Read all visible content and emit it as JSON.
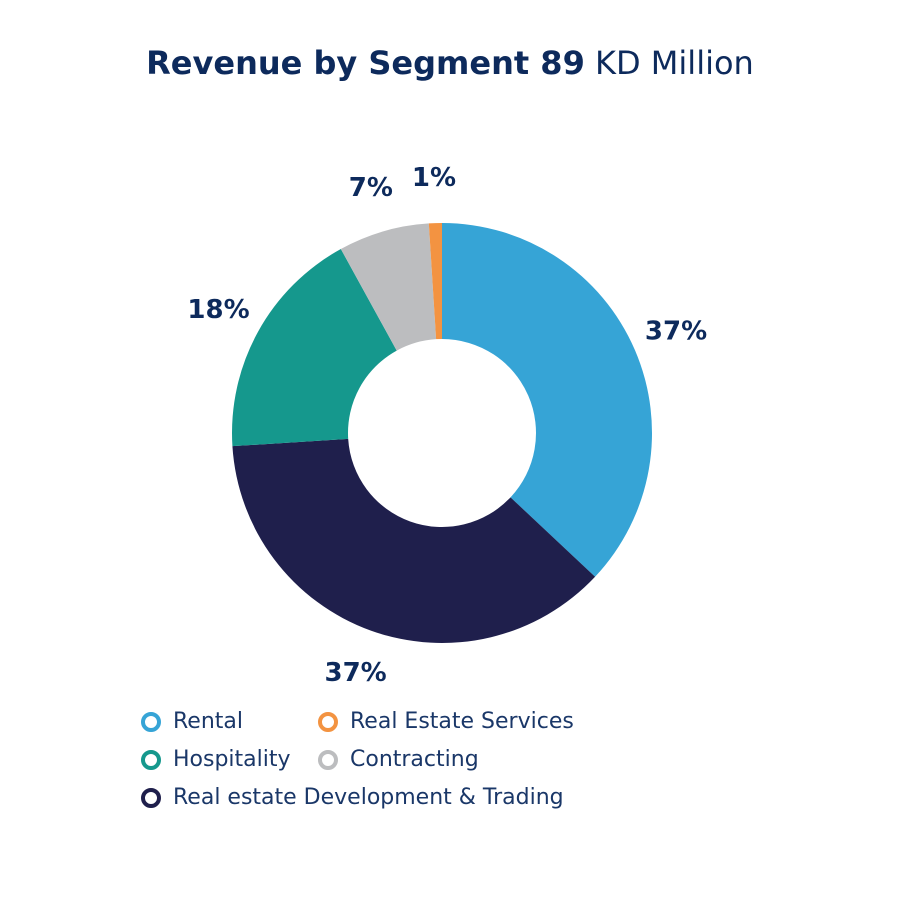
{
  "title": {
    "bold": "Revenue by Segment 89",
    "light": " KD Million"
  },
  "chart_data": {
    "type": "pie",
    "title": "Revenue by Segment 89 KD Million",
    "donut": true,
    "legend_position": "bottom",
    "series": [
      {
        "name": "Rental",
        "value": 37,
        "label": "37%",
        "color": "#36a4d6"
      },
      {
        "name": "Real estate Development & Trading",
        "value": 37,
        "label": "37%",
        "color": "#1f1f4c"
      },
      {
        "name": "Hospitality",
        "value": 18,
        "label": "18%",
        "color": "#15988d"
      },
      {
        "name": "Contracting",
        "value": 7,
        "label": "7%",
        "color": "#bcbdbf"
      },
      {
        "name": "Real Estate Services",
        "value": 1,
        "label": "1%",
        "color": "#f39341"
      }
    ]
  },
  "legend": [
    {
      "label": "Rental",
      "color": "#36a4d6"
    },
    {
      "label": "Real Estate Services",
      "color": "#f39341"
    },
    {
      "label": "Hospitality",
      "color": "#15988d"
    },
    {
      "label": "Contracting",
      "color": "#bcbdbf"
    },
    {
      "label": "Real estate Development & Trading",
      "color": "#1f1f4c"
    }
  ]
}
